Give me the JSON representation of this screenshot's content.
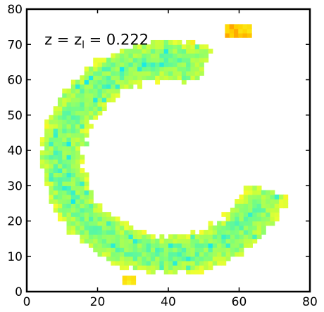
{
  "chart_data": {
    "type": "heatmap",
    "xlim": [
      0,
      80
    ],
    "ylim": [
      0,
      80
    ],
    "xticks": [
      0,
      20,
      40,
      60,
      80
    ],
    "yticks": [
      0,
      10,
      20,
      30,
      40,
      50,
      60,
      70,
      80
    ],
    "xlabel": "",
    "ylabel": "",
    "grid": false,
    "annotation": {
      "text": "z = z",
      "subscript": "l",
      "suffix": " = 0.222",
      "x": 5,
      "y": 70
    },
    "colormap": [
      "#00e5ff",
      "#38f0c8",
      "#7dff7a",
      "#c8ff3c",
      "#f5ff30",
      "#ffd400",
      "#ff8c00"
    ],
    "regions": [
      {
        "name": "crescent",
        "x_range": [
          3,
          74
        ],
        "center": [
          40,
          38
        ],
        "outer_radius": [
          36,
          33
        ],
        "inner_radius": [
          25,
          22
        ],
        "gap_angle_deg": [
          -20,
          70
        ],
        "value_range": [
          0.25,
          0.55
        ]
      },
      {
        "name": "top-right-blob",
        "x_range": [
          56,
          63
        ],
        "y_range": [
          72,
          75
        ],
        "value_range": [
          0.75,
          0.95
        ]
      },
      {
        "name": "bottom-blob",
        "x_range": [
          27,
          30
        ],
        "y_range": [
          2,
          4
        ],
        "value_range": [
          0.7,
          0.85
        ]
      }
    ]
  }
}
